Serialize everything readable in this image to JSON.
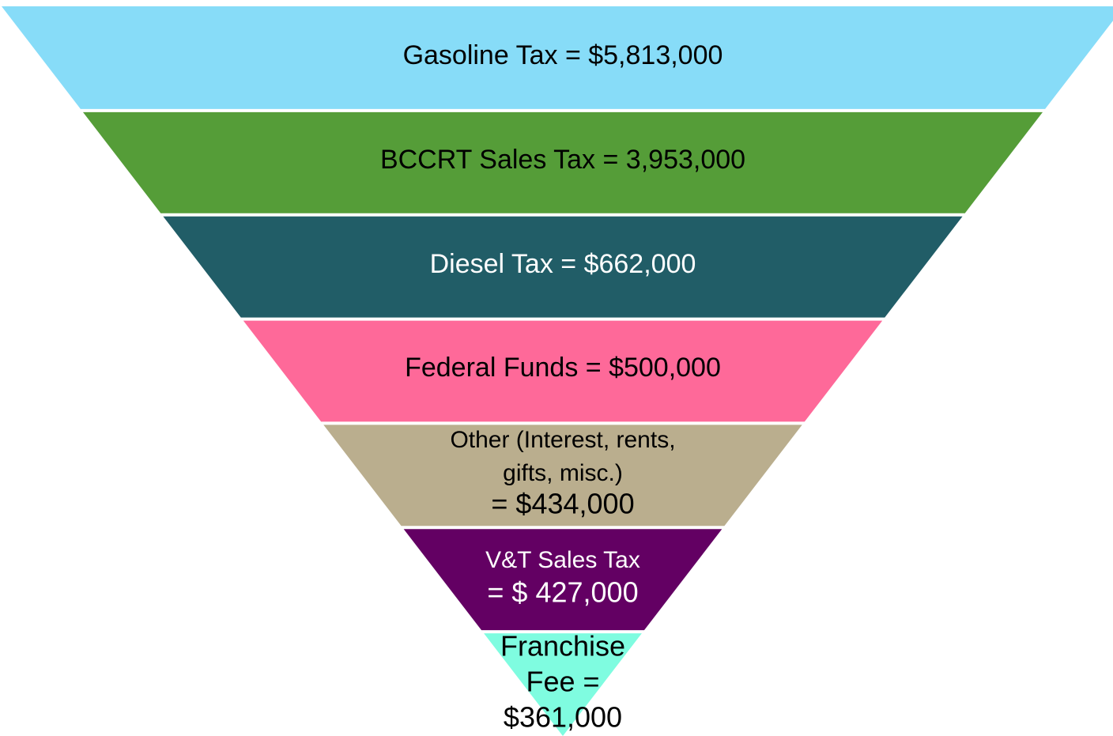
{
  "layers": [
    {
      "lines": [
        "Gasoline Tax = $5,813,000"
      ],
      "color": "#87dcf8",
      "text_color": "#000000"
    },
    {
      "lines": [
        "BCCRT Sales Tax = 3,953,000"
      ],
      "color": "#559d38",
      "text_color": "#000000"
    },
    {
      "lines": [
        "Diesel Tax = $662,000"
      ],
      "color": "#215d67",
      "text_color": "#ffffff"
    },
    {
      "lines": [
        "Federal Funds = $500,000"
      ],
      "color": "#fe6999",
      "text_color": "#000000"
    },
    {
      "lines": [
        "Other (Interest, rents,",
        "gifts, misc.)",
        "= $434,000"
      ],
      "color": "#baae8e",
      "text_color": "#000000"
    },
    {
      "lines": [
        "V&T Sales Tax",
        "= $ 427,000"
      ],
      "color": "#630063",
      "text_color": "#ffffff"
    },
    {
      "lines": [
        "Franchise",
        "Fee =",
        "$361,000"
      ],
      "color": "#7ffce0",
      "text_color": "#000000"
    }
  ]
}
